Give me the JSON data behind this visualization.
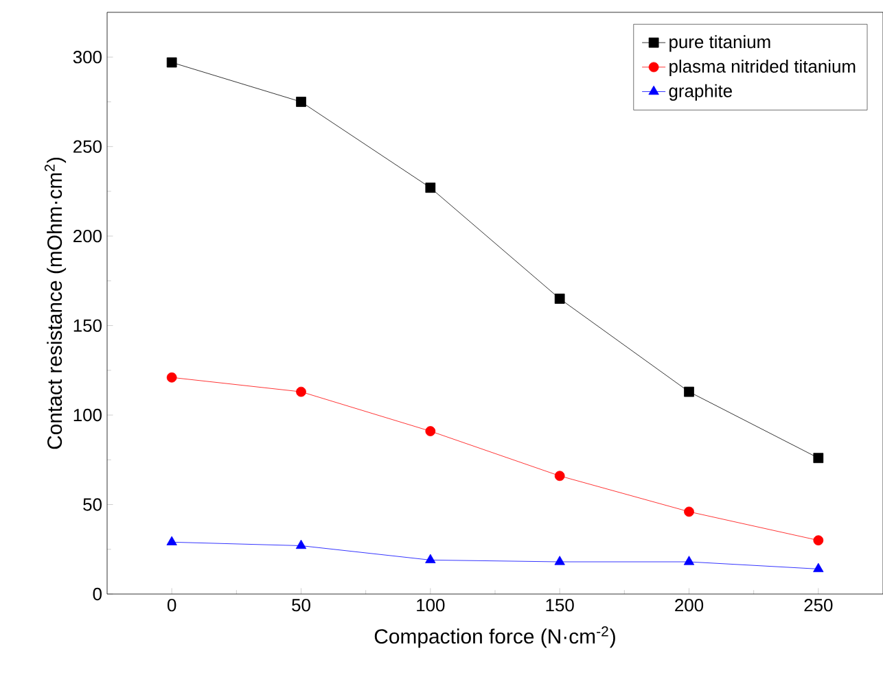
{
  "chart_data": {
    "type": "line",
    "xlabel": "Compaction force (N·cm$^{-2}$)",
    "ylabel": "Contact resistance (mOhm·cm$^{2}$)",
    "x": [
      0,
      50,
      100,
      150,
      200,
      250
    ],
    "series": [
      {
        "name": "pure titanium",
        "color": "#000000",
        "marker": "square",
        "values": [
          297,
          275,
          227,
          165,
          113,
          76
        ]
      },
      {
        "name": "plasma nitrided titanium",
        "color": "#ff0000",
        "marker": "circle",
        "values": [
          121,
          113,
          91,
          66,
          46,
          30
        ]
      },
      {
        "name": "graphite",
        "color": "#0000ff",
        "marker": "triangle",
        "values": [
          29,
          27,
          19,
          18,
          18,
          14
        ]
      }
    ],
    "xlim": [
      -25,
      275
    ],
    "ylim": [
      0,
      325
    ],
    "xticks": [
      0,
      50,
      100,
      150,
      200,
      250
    ],
    "yticks": [
      0,
      50,
      100,
      150,
      200,
      250,
      300
    ],
    "legend": "top right",
    "grid": false
  }
}
